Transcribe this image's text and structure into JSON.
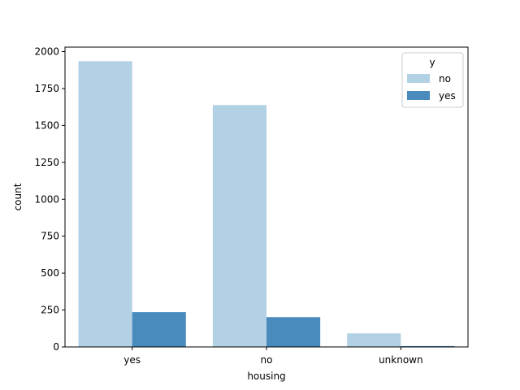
{
  "chart_data": {
    "type": "bar",
    "xlabel": "housing",
    "ylabel": "count",
    "categories": [
      "yes",
      "no",
      "unknown"
    ],
    "series": [
      {
        "name": "no",
        "values": [
          1935,
          1638,
          92
        ],
        "color": "#b3d1e5"
      },
      {
        "name": "yes",
        "values": [
          236,
          202,
          6
        ],
        "color": "#4a8bbd"
      }
    ],
    "ylim": [
      0,
      2000
    ],
    "yticks": [
      0,
      250,
      500,
      750,
      1000,
      1250,
      1500,
      1750,
      2000
    ],
    "grid": false,
    "legend": {
      "title": "y",
      "placement": "top-right"
    }
  }
}
